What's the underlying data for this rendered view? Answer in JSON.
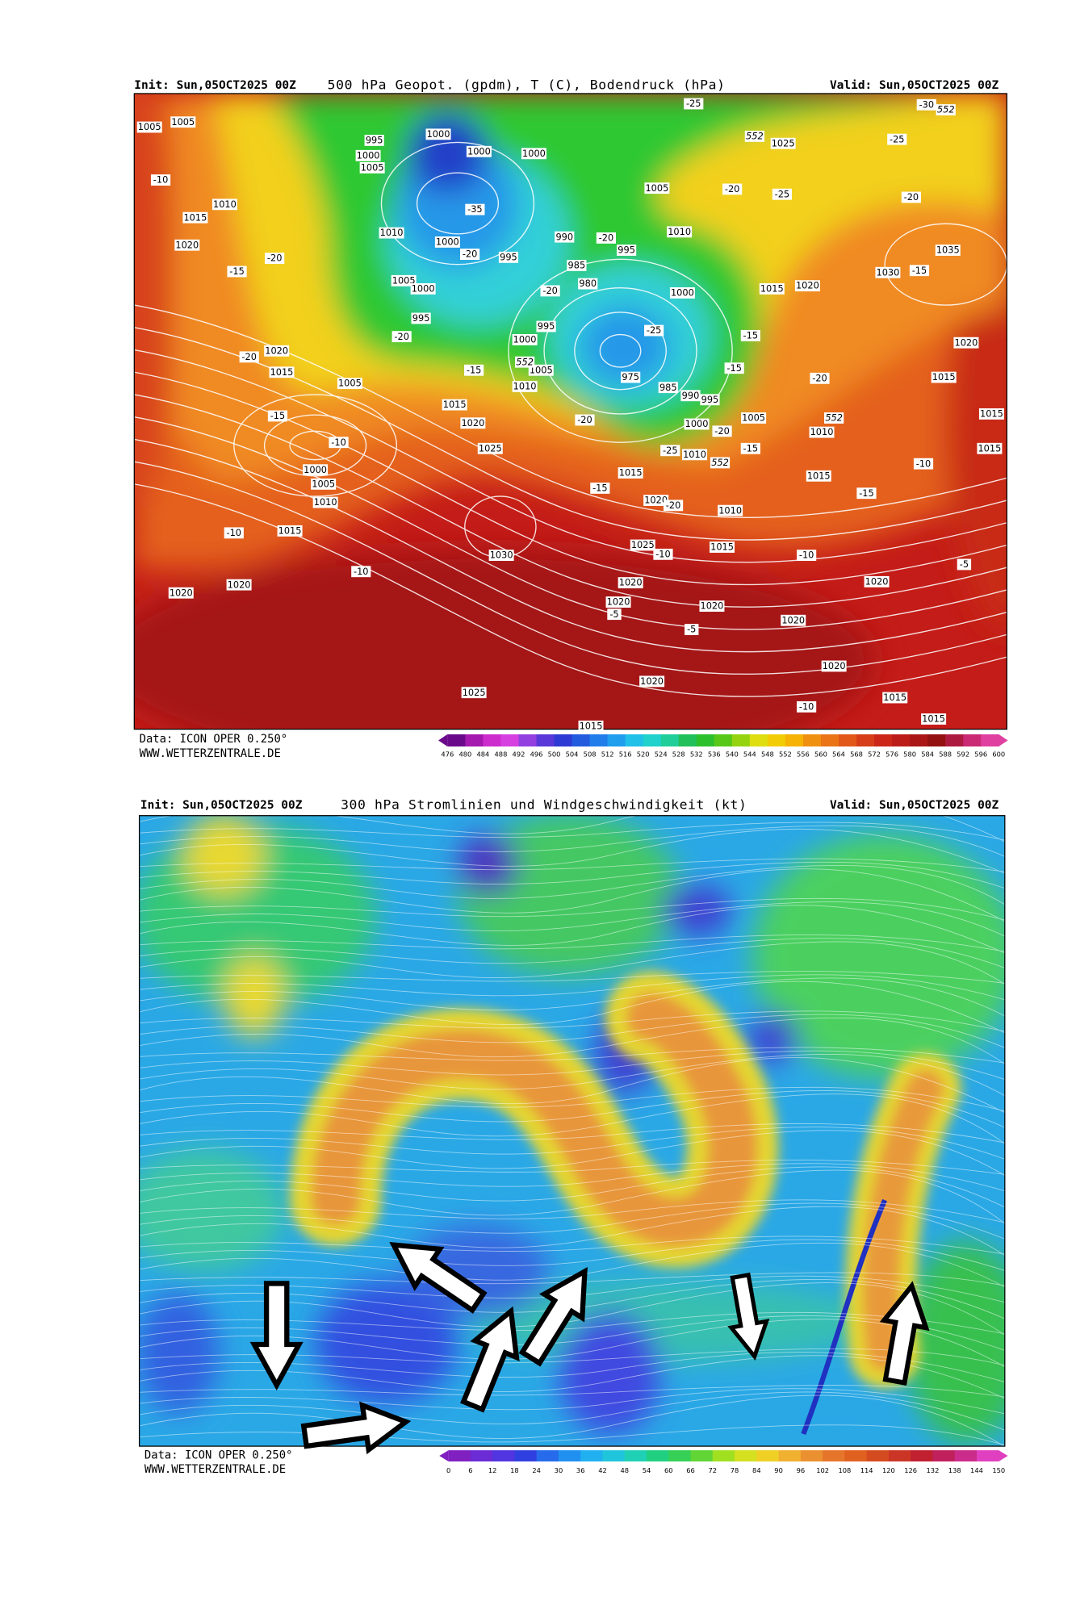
{
  "panels": [
    {
      "header": {
        "init": "Init: Sun,05OCT2025 00Z",
        "title": "500 hPa Geopot. (gpdm), T (C), Bodendruck (hPa)",
        "valid": "Valid: Sun,05OCT2025 00Z"
      },
      "labels": [
        1005,
        1005,
        995,
        1000,
        1005,
        1000,
        1000,
        1000,
        -10,
        1010,
        1015,
        1020,
        -15,
        -20,
        1010,
        1000,
        -35,
        -20,
        995,
        1005,
        1000,
        995,
        -20,
        990,
        -20,
        995,
        985,
        980,
        -20,
        1010,
        1005,
        -20,
        -25,
        1025,
        -25,
        552,
        -25,
        -30,
        552,
        -20,
        1035,
        1030,
        -15,
        1015,
        1020,
        1000,
        995,
        1000,
        -25,
        -15,
        1020,
        -20,
        1015,
        1005,
        -15,
        1005,
        1010,
        552,
        975,
        985,
        990,
        995,
        -15,
        -20,
        1020,
        1015,
        1015,
        -15,
        -10,
        1015,
        1020,
        1025,
        -20,
        1005,
        1000,
        -20,
        1010,
        552,
        -25,
        1010,
        -15,
        552,
        1000,
        1005,
        1010,
        1015,
        -15,
        1020,
        -20,
        1010,
        1015,
        -15,
        -10,
        1015,
        -10,
        1015,
        1030,
        1025,
        -10,
        1015,
        -10,
        -10,
        1020,
        1020,
        1020,
        1020,
        -5,
        1020,
        1020,
        -5,
        1020,
        -5,
        1020,
        1020,
        1025,
        -10,
        1015,
        1015,
        1015
      ],
      "footer": {
        "source": "Data: ICON OPER 0.250°",
        "site": "WWW.WETTERZENTRALE.DE"
      },
      "colorbar": [
        476,
        480,
        484,
        488,
        492,
        496,
        500,
        504,
        508,
        512,
        516,
        520,
        524,
        528,
        532,
        536,
        540,
        544,
        548,
        552,
        556,
        560,
        564,
        568,
        572,
        576,
        580,
        584,
        588,
        592,
        596,
        600
      ]
    },
    {
      "header": {
        "init": "Init: Sun,05OCT2025 00Z",
        "title": "300 hPa Stromlinien und Windgeschwindigkeit (kt)",
        "valid": "Valid: Sun,05OCT2025 00Z"
      },
      "footer": {
        "source": "Data: ICON OPER 0.250°",
        "site": "WWW.WETTERZENTRALE.DE"
      },
      "colorbar": [
        0,
        6,
        12,
        18,
        24,
        30,
        36,
        42,
        48,
        54,
        60,
        66,
        72,
        78,
        84,
        90,
        96,
        102,
        108,
        114,
        120,
        126,
        132,
        138,
        144,
        150
      ]
    }
  ]
}
